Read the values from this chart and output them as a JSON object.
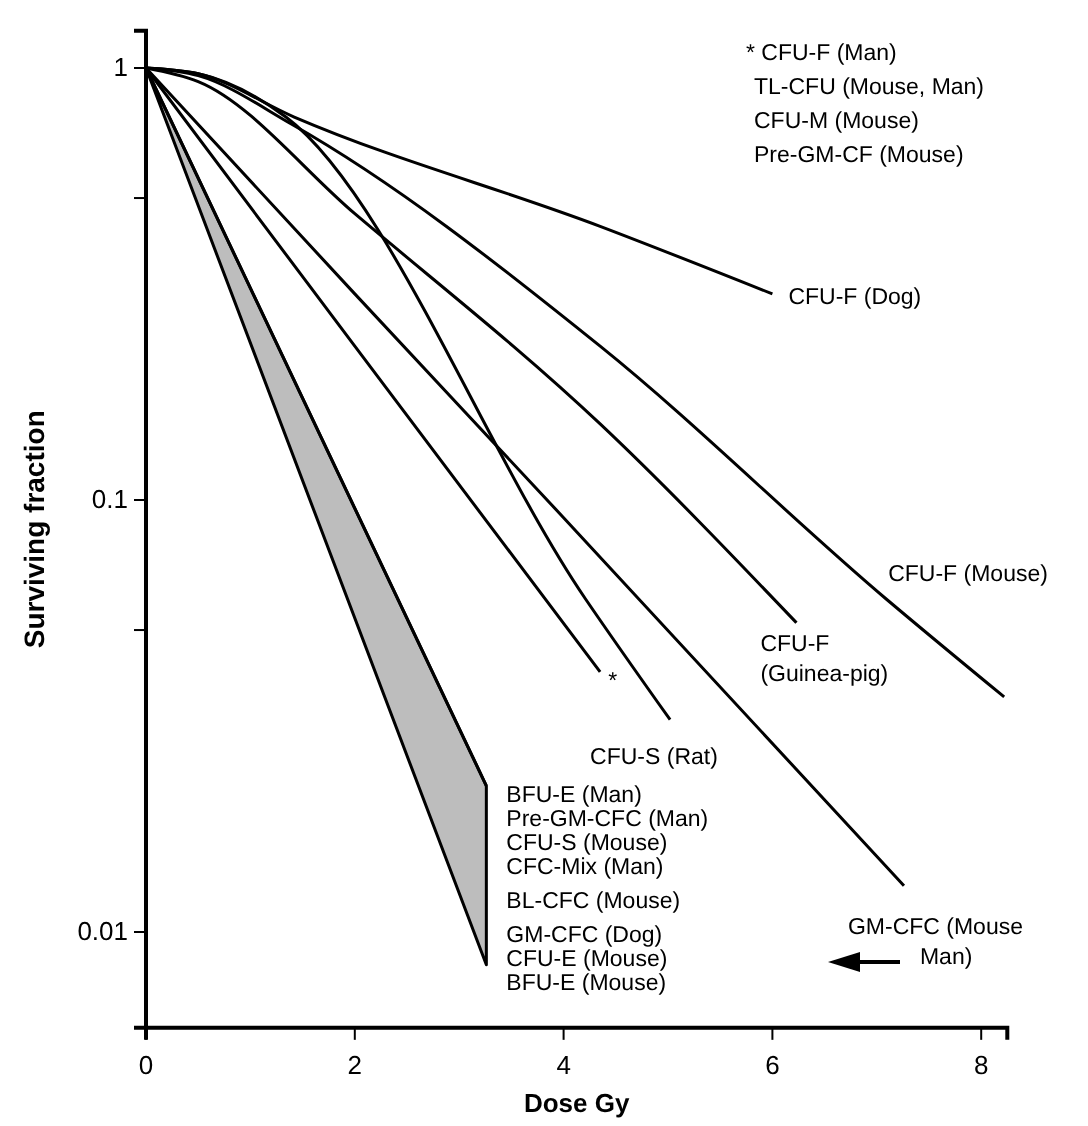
{
  "chart_data": {
    "type": "line",
    "xlabel": "Dose Gy",
    "ylabel": "Surviving fraction",
    "log": "y",
    "grid": false,
    "marker": "none",
    "line_style": "solid",
    "xlim": [
      0,
      8.25
    ],
    "xticks": [
      0,
      2,
      4,
      6,
      8
    ],
    "ylim": [
      0.006,
      1.22
    ],
    "yticks": [
      1,
      {
        "value": 0.5,
        "label": null
      },
      0.1,
      {
        "value": 0.05,
        "label": null
      },
      0.01
    ],
    "series": [
      {
        "name": "CFU-F (Dog)",
        "color": "#000000",
        "x": [
          0,
          0.5,
          1.42,
          4.35,
          6.0
        ],
        "values": [
          1,
          0.97,
          0.77,
          0.43,
          0.3
        ]
      },
      {
        "name": "CFU-F (Mouse)",
        "color": "#000000",
        "x": [
          0,
          0.5,
          1.4,
          4.35,
          7.09,
          8.22
        ],
        "values": [
          1,
          0.96,
          0.74,
          0.227,
          0.059,
          0.035
        ]
      },
      {
        "name": "CFU-F\n(Guinea-pig)",
        "color": "#000000",
        "x": [
          0,
          0.5,
          2,
          4.35,
          6.23
        ],
        "values": [
          1,
          0.93,
          0.46,
          0.15,
          0.052
        ]
      },
      {
        "name": "GM-CFC (Mouse\nMan)",
        "color": "#000000",
        "x": [
          0,
          2,
          4,
          7.26
        ],
        "values": [
          1,
          0.3,
          0.091,
          0.0128
        ]
      },
      {
        "name": "CFU-S (Rat)",
        "color": "#000000",
        "x": [
          0,
          0.5,
          1.34,
          4.21,
          5.02
        ],
        "values": [
          1,
          0.97,
          0.77,
          0.059,
          0.031
        ]
      },
      {
        "name": "*",
        "color": "#000000",
        "x": [
          0,
          2,
          4.35
        ],
        "values": [
          1,
          0.227,
          0.04
        ]
      },
      {
        "name": "BFU-E (Man)\nPre-GM-CFC  (Man)\nCFU-S (Mouse)\nCFC-Mix  (Man)\nBL-CFC (Mouse)\nGM-CFC (Dog)\nCFU-E (Mouse)\nBFU-E (Mouse)",
        "color": "#000000",
        "x": [
          0,
          3.26
        ],
        "values": [
          1,
          0.0218
        ],
        "lower": [
          1,
          0.0084
        ],
        "upper": [
          1,
          0.0218
        ]
      }
    ],
    "annotations": [
      "* CFU-F (Man)\nTL-CFU (Mouse, Man)\nCFU-M (Mouse)\nPre-GM-CF (Mouse)"
    ]
  }
}
